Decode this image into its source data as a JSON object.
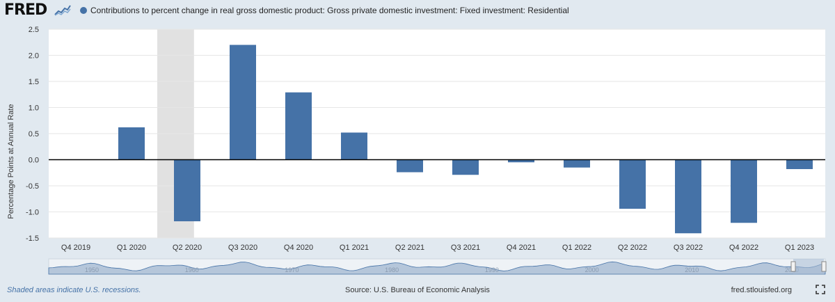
{
  "header": {
    "logo_text": "FRED",
    "legend_label": "Contributions to percent change in real gross domestic product: Gross private domestic investment: Fixed investment: Residential"
  },
  "footer": {
    "recession_note": "Shaded areas indicate U.S. recessions.",
    "source": "Source: U.S. Bureau of Economic Analysis",
    "site": "fred.stlouisfed.org"
  },
  "colors": {
    "series": "#4572a7",
    "recession": "#e1e1e1",
    "background": "#e1e9f0",
    "plot_bg": "#ffffff",
    "footer_link": "#4572a7"
  },
  "chart_data": {
    "type": "bar",
    "categories": [
      "Q4 2019",
      "Q1 2020",
      "Q2 2020",
      "Q3 2020",
      "Q4 2020",
      "Q1 2021",
      "Q2 2021",
      "Q3 2021",
      "Q4 2021",
      "Q1 2022",
      "Q2 2022",
      "Q3 2022",
      "Q4 2022",
      "Q1 2023"
    ],
    "series": [
      {
        "name": "Contributions to percent change in real gross domestic product: Gross private domestic investment: Fixed investment: Residential",
        "values": [
          null,
          0.62,
          -1.18,
          2.2,
          1.29,
          0.52,
          -0.24,
          -0.29,
          -0.05,
          -0.15,
          -0.94,
          -1.41,
          -1.21,
          -0.18
        ]
      }
    ],
    "ylabel": "Percentage Points at Annual Rate",
    "ylim": [
      -1.5,
      2.5
    ],
    "yticks": [
      "2.5",
      "2.0",
      "1.5",
      "1.0",
      "0.5",
      "0.0",
      "-0.5",
      "-1.0",
      "-1.5"
    ],
    "ytick_values": [
      2.5,
      2.0,
      1.5,
      1.0,
      0.5,
      0.0,
      -0.5,
      -1.0,
      -1.5
    ],
    "recession_shading": {
      "from_category": "Q1 2020",
      "to_category": "Q2 2020"
    },
    "grid": true,
    "legend": "top-left",
    "navigator_labels": [
      "1950",
      "1960",
      "1970",
      "1980",
      "1990",
      "2000",
      "2010",
      "2020"
    ]
  }
}
